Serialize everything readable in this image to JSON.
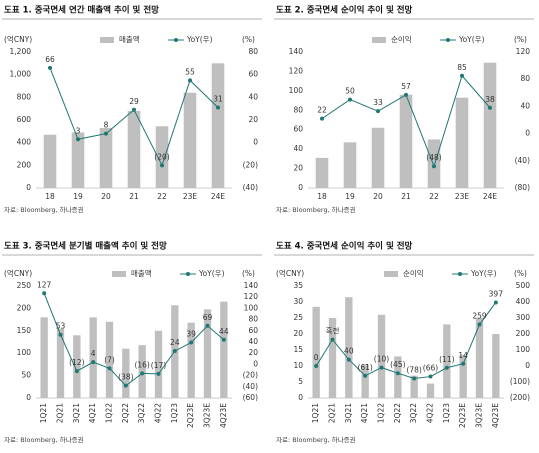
{
  "chart_data": [
    {
      "type": "combo",
      "title": "도표 1. 중국면세 연간 매출액 추이 및 전망",
      "y_unit": "(억CNY)",
      "y2_unit": "(%)",
      "categories": [
        "18",
        "19",
        "20",
        "21",
        "22",
        "23E",
        "24E"
      ],
      "series": [
        {
          "name": "매출액",
          "type": "bar",
          "color": "#bfbfbf",
          "values": [
            470,
            490,
            530,
            680,
            545,
            840,
            1100
          ]
        },
        {
          "name": "YoY(우)",
          "type": "line",
          "axis": "y2",
          "color": "#1f7872",
          "values": [
            66,
            3,
            8,
            29,
            -20,
            55,
            31
          ],
          "value_labels": [
            "66",
            "3",
            "8",
            "29",
            "(20)",
            "55",
            "31"
          ]
        }
      ],
      "ylim": [
        0,
        1200
      ],
      "yticks": [
        0,
        200,
        400,
        600,
        800,
        {
          "value": 1000,
          "label": "1,000"
        },
        {
          "value": 1200,
          "label": "1,200"
        }
      ],
      "y2lim": [
        -40,
        80
      ],
      "y2ticks": [
        {
          "value": -40,
          "label": "(40)"
        },
        {
          "value": -20,
          "label": "(20)"
        },
        0,
        20,
        40,
        60,
        80
      ],
      "source": "자료: Bloomberg, 하나증권"
    },
    {
      "type": "combo",
      "title": "도표 2. 중국면세 순이익 추이 및 전망",
      "y2_unit": "(%)",
      "categories": [
        "18",
        "19",
        "20",
        "21",
        "22",
        "23E",
        "24E"
      ],
      "series": [
        {
          "name": "순이익",
          "type": "bar",
          "color": "#bfbfbf",
          "values": [
            31,
            47,
            62,
            96,
            50,
            93,
            129
          ]
        },
        {
          "name": "YoY(우)",
          "type": "line",
          "axis": "y2",
          "color": "#1f7872",
          "values": [
            22,
            50,
            33,
            57,
            -48,
            85,
            38
          ],
          "value_labels": [
            "22",
            "50",
            "33",
            "57",
            "(48)",
            "85",
            "38"
          ]
        }
      ],
      "ylim": [
        0,
        140
      ],
      "yticks": [
        0,
        20,
        40,
        60,
        80,
        100,
        120,
        140
      ],
      "y2lim": [
        -80,
        120
      ],
      "y2ticks": [
        {
          "value": -80,
          "label": "(80)"
        },
        {
          "value": -40,
          "label": "(40)"
        },
        0,
        40,
        80,
        120
      ],
      "source": "자료: Bloomberg, 하나증권"
    },
    {
      "type": "combo",
      "title": "도표 3. 중국면세 분기별 매출액 추이 및 전망",
      "y_unit": "(억CNY)",
      "y2_unit": "(%)",
      "categories": [
        "1Q21",
        "2Q21",
        "3Q21",
        "4Q21",
        "1Q22",
        "2Q22",
        "3Q22",
        "4Q22",
        "1Q23",
        "2Q23E",
        "3Q23E",
        "4Q23E"
      ],
      "series": [
        {
          "name": "매출액",
          "type": "bar",
          "color": "#bfbfbf",
          "values": [
            180,
            155,
            140,
            180,
            170,
            110,
            118,
            150,
            207,
            168,
            198,
            215
          ]
        },
        {
          "name": "YoY(우)",
          "type": "line",
          "axis": "y2",
          "color": "#1f7872",
          "values": [
            127,
            53,
            -12,
            4,
            -7,
            -38,
            -16,
            -17,
            24,
            39,
            69,
            44
          ],
          "value_labels": [
            "127",
            "53",
            "(12)",
            "4",
            "(7)",
            "(38)",
            "(16)",
            "(17)",
            "24",
            "39",
            "69",
            "44"
          ]
        }
      ],
      "ylim": [
        0,
        250
      ],
      "yticks": [
        0,
        50,
        100,
        150,
        200,
        250
      ],
      "y2lim": [
        -60,
        140
      ],
      "y2ticks": [
        {
          "value": -60,
          "label": "(60)"
        },
        {
          "value": -40,
          "label": "(40)"
        },
        {
          "value": -20,
          "label": "(20)"
        },
        0,
        20,
        40,
        60,
        80,
        100,
        120,
        140
      ],
      "source": "자료: Bloomberg, 하나증권"
    },
    {
      "type": "combo",
      "title": "도표 4. 중국면세 순이익 추이 및 전망",
      "y_unit": "(억CNY)",
      "y2_unit": "(%)",
      "categories": [
        "1Q21",
        "2Q21",
        "3Q21",
        "4Q21",
        "1Q22",
        "2Q22",
        "3Q22",
        "4Q22",
        "1Q23",
        "2Q23E",
        "3Q23E",
        "4Q23E"
      ],
      "series": [
        {
          "name": "순이익",
          "type": "bar",
          "color": "#bfbfbf",
          "values": [
            28.5,
            25,
            31.5,
            10.5,
            26,
            13,
            7,
            4.5,
            23,
            13.5,
            25,
            20
          ]
        },
        {
          "name": "YoY(우)",
          "type": "line",
          "axis": "y2",
          "color": "#1f7872",
          "values": [
            0,
            165,
            40,
            -61,
            -10,
            -45,
            -78,
            -66,
            -11,
            14,
            259,
            397
          ],
          "value_labels": [
            "0",
            "흑전",
            "40",
            "(61)",
            "(10)",
            "(45)",
            "(78)",
            "(66)",
            "(11)",
            "14",
            "259",
            "397"
          ]
        }
      ],
      "ylim": [
        0,
        35
      ],
      "yticks": [
        0,
        5,
        10,
        15,
        20,
        25,
        30,
        35
      ],
      "y2lim": [
        -200,
        500
      ],
      "y2ticks": [
        {
          "value": -200,
          "label": "(200)"
        },
        {
          "value": -100,
          "label": "(100)"
        },
        0,
        100,
        200,
        300,
        400,
        500
      ],
      "source": "자료: Bloomberg, 하나증권"
    }
  ]
}
